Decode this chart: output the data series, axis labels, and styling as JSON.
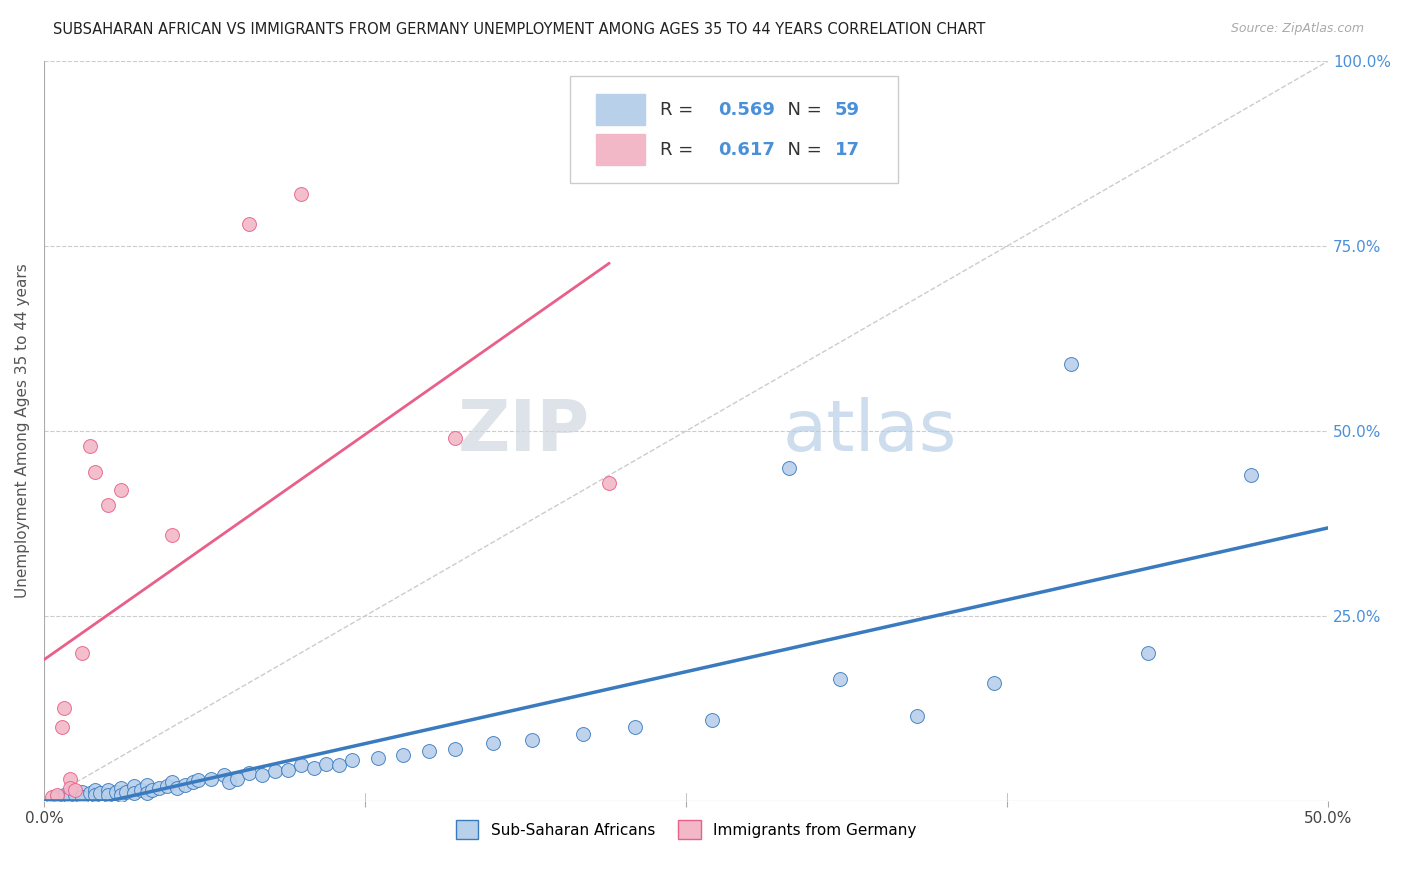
{
  "title": "SUBSAHARAN AFRICAN VS IMMIGRANTS FROM GERMANY UNEMPLOYMENT AMONG AGES 35 TO 44 YEARS CORRELATION CHART",
  "source": "Source: ZipAtlas.com",
  "ylabel": "Unemployment Among Ages 35 to 44 years",
  "ylabel_right_ticks": [
    0.0,
    0.25,
    0.5,
    0.75,
    1.0
  ],
  "ylabel_right_labels": [
    "",
    "25.0%",
    "50.0%",
    "75.0%",
    "100.0%"
  ],
  "blue_color": "#b8d0ea",
  "pink_color": "#f2b8c8",
  "blue_line_color": "#3a7bbf",
  "pink_line_color": "#e8608a",
  "blue_scatter_x": [
    0.005,
    0.008,
    0.01,
    0.01,
    0.012,
    0.015,
    0.015,
    0.018,
    0.02,
    0.02,
    0.022,
    0.025,
    0.025,
    0.028,
    0.03,
    0.03,
    0.032,
    0.035,
    0.035,
    0.038,
    0.04,
    0.04,
    0.042,
    0.045,
    0.048,
    0.05,
    0.052,
    0.055,
    0.058,
    0.06,
    0.065,
    0.07,
    0.072,
    0.075,
    0.08,
    0.085,
    0.09,
    0.095,
    0.1,
    0.105,
    0.11,
    0.115,
    0.12,
    0.13,
    0.14,
    0.15,
    0.16,
    0.175,
    0.19,
    0.21,
    0.23,
    0.26,
    0.29,
    0.31,
    0.34,
    0.37,
    0.4,
    0.43,
    0.47
  ],
  "blue_scatter_y": [
    0.005,
    0.008,
    0.01,
    0.005,
    0.008,
    0.012,
    0.005,
    0.01,
    0.015,
    0.008,
    0.01,
    0.015,
    0.008,
    0.012,
    0.018,
    0.008,
    0.012,
    0.02,
    0.01,
    0.015,
    0.022,
    0.01,
    0.015,
    0.018,
    0.02,
    0.025,
    0.018,
    0.022,
    0.025,
    0.028,
    0.03,
    0.035,
    0.025,
    0.03,
    0.038,
    0.035,
    0.04,
    0.042,
    0.048,
    0.045,
    0.05,
    0.048,
    0.055,
    0.058,
    0.062,
    0.068,
    0.07,
    0.078,
    0.082,
    0.09,
    0.1,
    0.11,
    0.45,
    0.165,
    0.115,
    0.16,
    0.59,
    0.2,
    0.44
  ],
  "pink_scatter_x": [
    0.003,
    0.005,
    0.007,
    0.008,
    0.01,
    0.01,
    0.012,
    0.015,
    0.018,
    0.02,
    0.025,
    0.03,
    0.05,
    0.08,
    0.1,
    0.16,
    0.22
  ],
  "pink_scatter_y": [
    0.005,
    0.008,
    0.1,
    0.125,
    0.03,
    0.018,
    0.015,
    0.2,
    0.48,
    0.445,
    0.4,
    0.42,
    0.36,
    0.78,
    0.82,
    0.49,
    0.43
  ],
  "watermark_zip": "ZIP",
  "watermark_atlas": "atlas",
  "background_color": "#ffffff",
  "grid_color": "#cccccc",
  "legend_label1": "Sub-Saharan Africans",
  "legend_label2": "Immigrants from Germany"
}
